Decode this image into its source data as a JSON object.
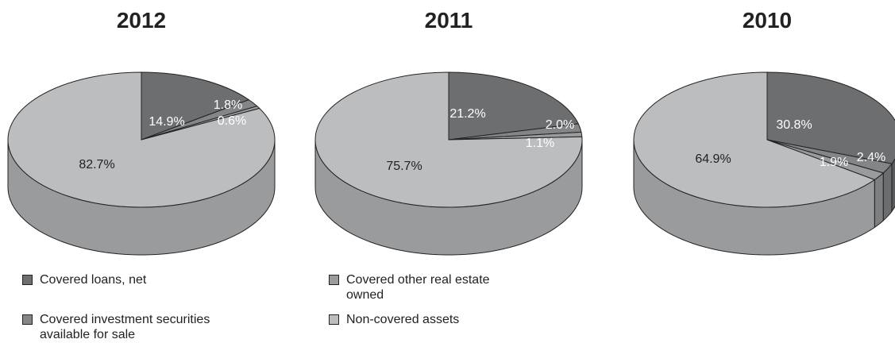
{
  "colors": {
    "covered_loans": "#6d6e70",
    "covered_oreo": "#9a9b9d",
    "covered_securities": "#848587",
    "non_covered": "#bcbdbf",
    "outline": "#222222",
    "label_light": "#ffffff",
    "label_dark": "#222222"
  },
  "legend": [
    {
      "key": "covered_loans",
      "label": "Covered loans, net"
    },
    {
      "key": "covered_oreo",
      "label": "Covered other real estate owned"
    },
    {
      "key": "covered_securities",
      "label": "Covered investment securities available for sale"
    },
    {
      "key": "non_covered",
      "label": "Non-covered assets"
    }
  ],
  "chart_data": [
    {
      "type": "pie",
      "title": "2012",
      "slices": [
        {
          "key": "covered_loans",
          "value": 14.9,
          "label": "14.9%"
        },
        {
          "key": "covered_securities",
          "value": 1.8,
          "label": "1.8%"
        },
        {
          "key": "covered_oreo",
          "value": 0.6,
          "label": "0.6%"
        },
        {
          "key": "non_covered",
          "value": 82.7,
          "label": "82.7%"
        }
      ]
    },
    {
      "type": "pie",
      "title": "2011",
      "slices": [
        {
          "key": "covered_loans",
          "value": 21.2,
          "label": "21.2%"
        },
        {
          "key": "covered_securities",
          "value": 2.0,
          "label": "2.0%"
        },
        {
          "key": "covered_oreo",
          "value": 1.1,
          "label": "1.1%"
        },
        {
          "key": "non_covered",
          "value": 75.7,
          "label": "75.7%"
        }
      ]
    },
    {
      "type": "pie",
      "title": "2010",
      "slices": [
        {
          "key": "covered_loans",
          "value": 30.8,
          "label": "30.8%"
        },
        {
          "key": "covered_securities",
          "value": 2.4,
          "label": "2.4%"
        },
        {
          "key": "covered_oreo",
          "value": 1.9,
          "label": "1.9%"
        },
        {
          "key": "non_covered",
          "value": 64.9,
          "label": "64.9%"
        }
      ]
    }
  ]
}
